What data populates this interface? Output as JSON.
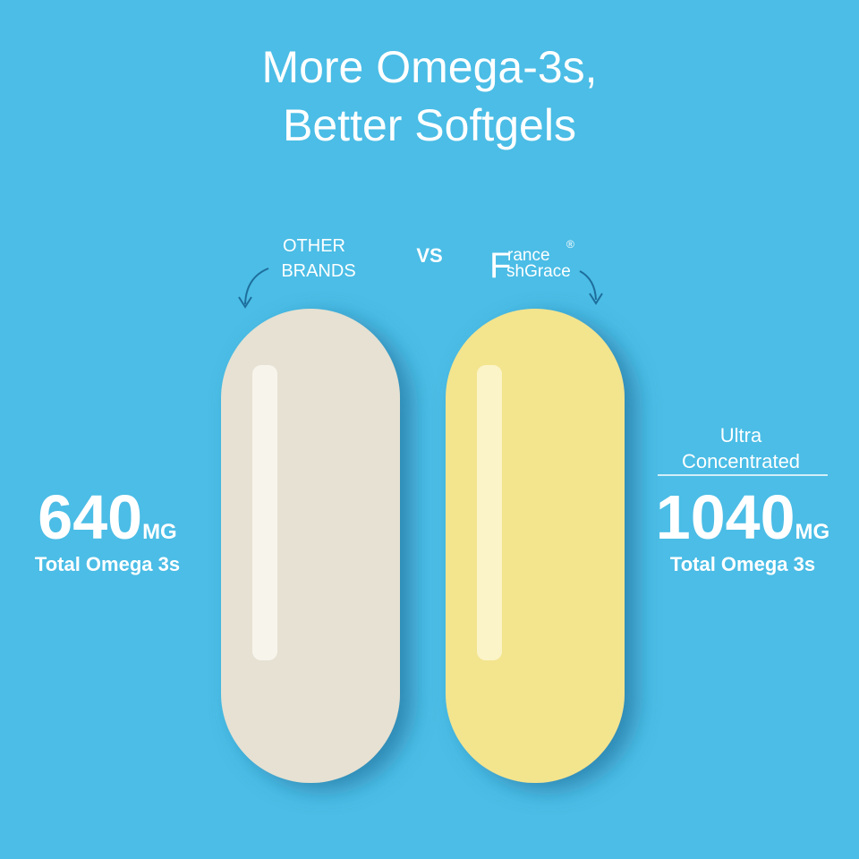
{
  "title": {
    "line1": "More Omega-3s,",
    "line2": "Better Softgels"
  },
  "other_brands": {
    "label_line1": "OTHER",
    "label_line2": "BRANDS",
    "amount": "640",
    "unit": "MG",
    "caption": "Total Omega 3s"
  },
  "vs": "VS",
  "brand": {
    "logo_initial": "F",
    "logo_top": "rance",
    "logo_bottom": "shGrace",
    "logo_mark": "®",
    "badge_line1": "Ultra",
    "badge_line2": "Concentrated",
    "amount": "1040",
    "unit": "MG",
    "caption": "Total Omega 3s"
  }
}
